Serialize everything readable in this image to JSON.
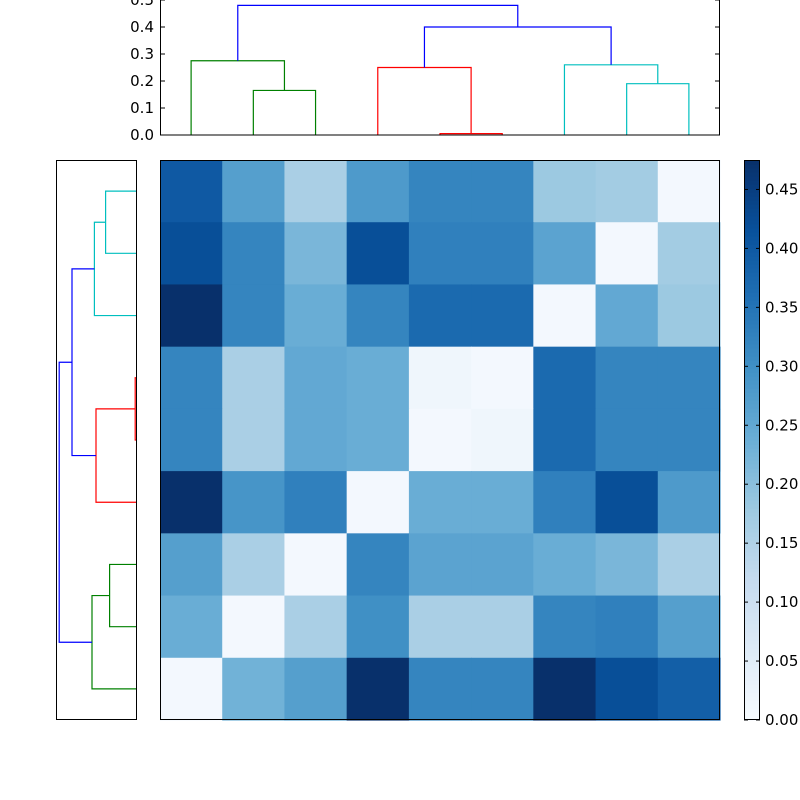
{
  "chart_data": [
    {
      "type": "dendrogram",
      "orientation": "top",
      "ylim": [
        0,
        0.5
      ],
      "yticks": [
        "0.0",
        "0.1",
        "0.2",
        "0.3",
        "0.4",
        "0.5"
      ],
      "ytick_values": [
        0,
        0.1,
        0.2,
        0.3,
        0.4,
        0.5
      ],
      "links": [
        {
          "x": [
            1,
            2
          ],
          "height": 0.165,
          "color": "#008000"
        },
        {
          "x": [
            0,
            1.5
          ],
          "height": 0.275,
          "color": "#008000"
        },
        {
          "x": [
            4,
            5
          ],
          "height": 0.005,
          "color": "#ff0000"
        },
        {
          "x": [
            3,
            4.5
          ],
          "height": 0.25,
          "color": "#ff0000"
        },
        {
          "x": [
            7,
            8
          ],
          "height": 0.19,
          "color": "#00bfbf"
        },
        {
          "x": [
            6,
            7.5
          ],
          "height": 0.26,
          "color": "#00bfbf"
        },
        {
          "x": [
            3.75,
            6.75
          ],
          "height": 0.4,
          "color": "#0000ff"
        },
        {
          "x": [
            0.75,
            5.25
          ],
          "height": 0.48,
          "color": "#0000ff"
        }
      ]
    },
    {
      "type": "dendrogram",
      "orientation": "left",
      "links": [
        {
          "y": [
            0,
            1
          ],
          "height": 0.19,
          "color": "#00bfbf"
        },
        {
          "y": [
            0.5,
            2
          ],
          "height": 0.26,
          "color": "#00bfbf"
        },
        {
          "y": [
            3,
            4
          ],
          "height": 0.005,
          "color": "#ff0000"
        },
        {
          "y": [
            5,
            3.5
          ],
          "height": 0.25,
          "color": "#ff0000"
        },
        {
          "y": [
            1.25,
            4.25
          ],
          "height": 0.4,
          "color": "#0000ff"
        },
        {
          "y": [
            6,
            7
          ],
          "height": 0.165,
          "color": "#008000"
        },
        {
          "y": [
            6.5,
            8
          ],
          "height": 0.275,
          "color": "#008000"
        },
        {
          "y": [
            2.75,
            7.25
          ],
          "height": 0.48,
          "color": "#0000ff"
        }
      ]
    },
    {
      "type": "heatmap",
      "colormap": "Blues",
      "vmin": 0,
      "vmax": 0.475,
      "rows": 9,
      "cols": 9,
      "values": [
        [
          0.4,
          0.27,
          0.16,
          0.28,
          0.32,
          0.32,
          0.18,
          0.17,
          0.01
        ],
        [
          0.42,
          0.32,
          0.22,
          0.42,
          0.33,
          0.33,
          0.26,
          0.01,
          0.17
        ],
        [
          0.475,
          0.32,
          0.24,
          0.32,
          0.37,
          0.37,
          0.01,
          0.25,
          0.18
        ],
        [
          0.32,
          0.16,
          0.25,
          0.24,
          0.02,
          0.01,
          0.37,
          0.32,
          0.32
        ],
        [
          0.32,
          0.16,
          0.25,
          0.24,
          0.01,
          0.02,
          0.37,
          0.32,
          0.32
        ],
        [
          0.475,
          0.29,
          0.33,
          0.01,
          0.24,
          0.24,
          0.33,
          0.42,
          0.28
        ],
        [
          0.27,
          0.16,
          0.01,
          0.32,
          0.26,
          0.26,
          0.24,
          0.22,
          0.16
        ],
        [
          0.24,
          0.01,
          0.16,
          0.3,
          0.16,
          0.16,
          0.32,
          0.33,
          0.27
        ],
        [
          0.01,
          0.23,
          0.27,
          0.475,
          0.32,
          0.32,
          0.475,
          0.42,
          0.39
        ]
      ]
    },
    {
      "type": "colorbar",
      "range": [
        0,
        0.475
      ],
      "ticks": [
        "0.00",
        "0.05",
        "0.10",
        "0.15",
        "0.20",
        "0.25",
        "0.30",
        "0.35",
        "0.40",
        "0.45"
      ],
      "tick_values": [
        0,
        0.05,
        0.1,
        0.15,
        0.2,
        0.25,
        0.3,
        0.35,
        0.4,
        0.45
      ]
    }
  ]
}
